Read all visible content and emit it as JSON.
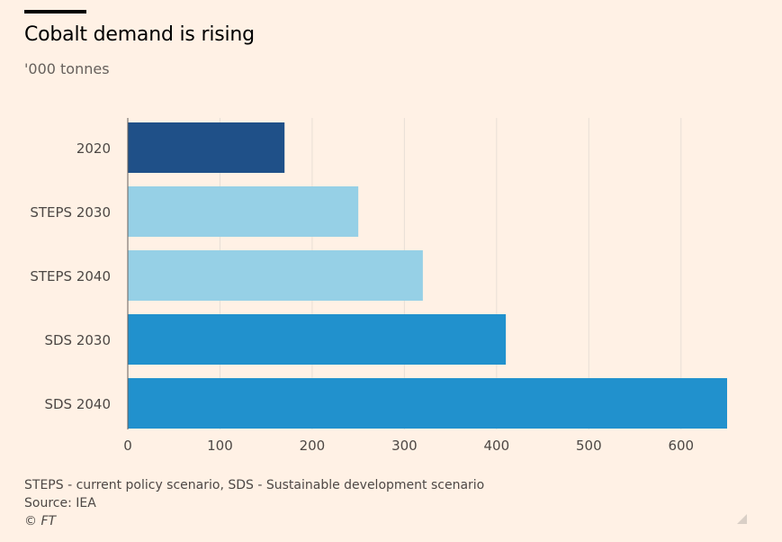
{
  "header": {
    "title": "Cobalt demand is rising",
    "subtitle": "'000 tonnes"
  },
  "footer": {
    "note": "STEPS - current policy scenario, SDS - Sustainable development scenario",
    "source": "Source: IEA",
    "copyright": "© FT"
  },
  "colors": {
    "background": "#fff1e5",
    "actual": "#1f5088",
    "steps": "#96d0e6",
    "sds": "#2191cd",
    "grid": "#e8dfd6"
  },
  "chart_data": {
    "type": "bar",
    "orientation": "horizontal",
    "title": "Cobalt demand is rising",
    "subtitle": "'000 tonnes",
    "categories": [
      "2020",
      "STEPS 2030",
      "STEPS 2040",
      "SDS 2030",
      "SDS 2040"
    ],
    "values": [
      170,
      250,
      320,
      410,
      650
    ],
    "bar_colors": [
      "#1f5088",
      "#96d0e6",
      "#96d0e6",
      "#2191cd",
      "#2191cd"
    ],
    "xlim": [
      0,
      650
    ],
    "xticks": [
      0,
      100,
      200,
      300,
      400,
      500,
      600
    ],
    "grid": true,
    "legend": "none"
  }
}
